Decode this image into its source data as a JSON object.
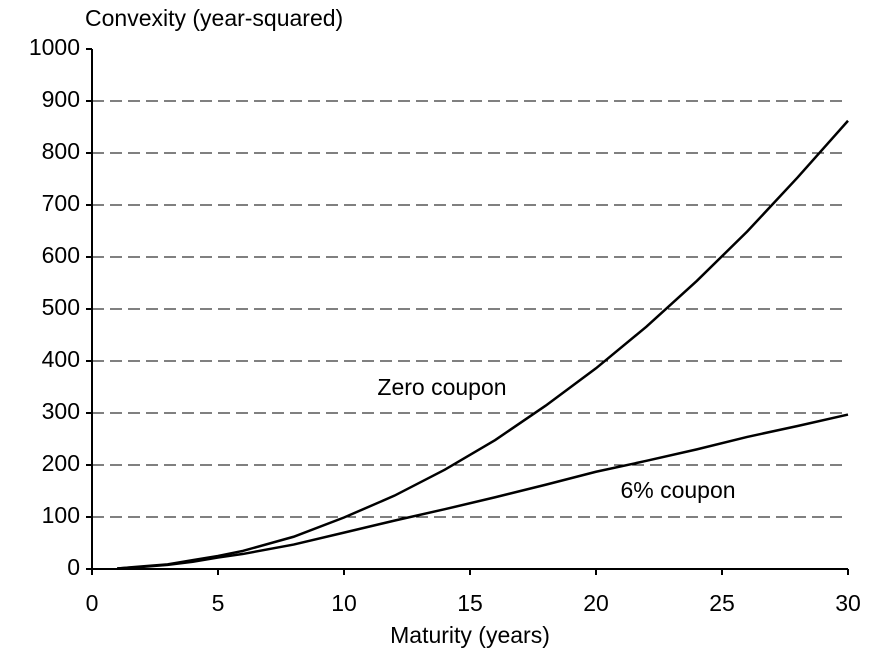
{
  "chart_data": {
    "type": "line",
    "ylabel": "Convexity (year-squared)",
    "xlabel": "Maturity (years)",
    "annotations": [
      "Zero coupon",
      "6% coupon"
    ],
    "x": [
      1,
      2,
      3,
      4,
      5,
      6,
      8,
      10,
      12,
      14,
      16,
      18,
      20,
      22,
      24,
      26,
      28,
      30
    ],
    "series": [
      {
        "name": "Zero coupon",
        "color": "#000000",
        "values": [
          1,
          5,
          9,
          17,
          25,
          35,
          62,
          99,
          141,
          191,
          248,
          314,
          386,
          466,
          554,
          649,
          753,
          862
        ]
      },
      {
        "name": "6% coupon",
        "color": "#000000",
        "values": [
          1,
          4,
          8,
          14,
          22,
          29,
          47,
          70,
          93,
          115,
          138,
          162,
          187,
          208,
          230,
          254,
          275,
          297
        ]
      }
    ],
    "xlim": [
      0,
      30
    ],
    "xticks": [
      0,
      5,
      10,
      15,
      20,
      25,
      30
    ],
    "ylim": [
      0,
      1000
    ],
    "yticks": [
      0,
      100,
      200,
      300,
      400,
      500,
      600,
      700,
      800,
      900,
      1000
    ],
    "grid": true
  }
}
